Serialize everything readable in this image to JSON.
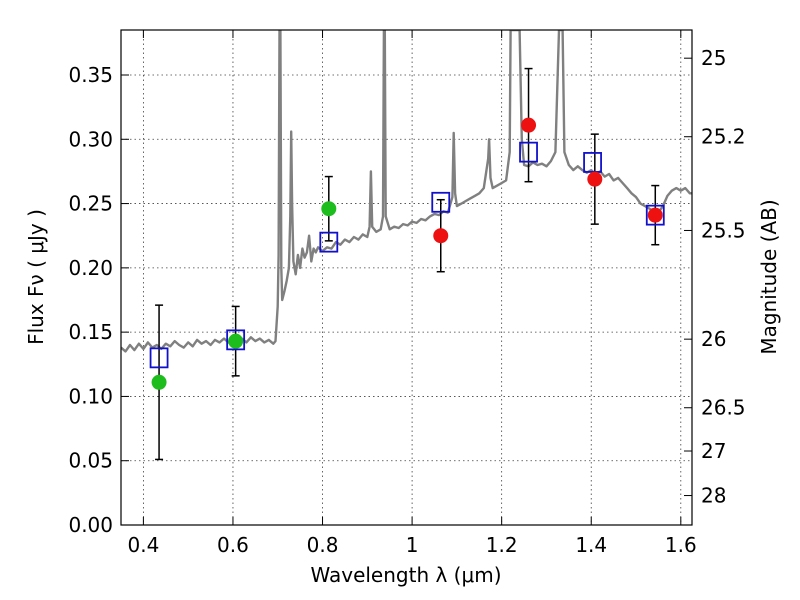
{
  "chart_data": {
    "type": "scatter",
    "xlabel": "Wavelength  λ (μm)",
    "ylabel": "Flux  Fν  ( μJy )",
    "y2label": "Magnitude (AB)",
    "xlim": [
      0.35,
      1.625
    ],
    "ylim": [
      0.0,
      0.385
    ],
    "x_ticks": [
      0.4,
      0.6,
      0.8,
      1.0,
      1.2,
      1.4,
      1.6
    ],
    "x_tick_labels": [
      "0.4",
      "0.6",
      "0.8",
      "1",
      "1.2",
      "1.4",
      "1.6"
    ],
    "y_ticks": [
      0.0,
      0.05,
      0.1,
      0.15,
      0.2,
      0.25,
      0.3,
      0.35
    ],
    "y_tick_labels": [
      "0.00",
      "0.05",
      "0.10",
      "0.15",
      "0.20",
      "0.25",
      "0.30",
      "0.35"
    ],
    "y2_ticks": [
      25,
      25.2,
      25.5,
      26,
      26.5,
      27,
      28
    ],
    "y2_tick_labels": [
      "25",
      "25.2",
      "25.5",
      "26",
      "26.5",
      "27",
      "28"
    ],
    "grid": true,
    "colors": {
      "spectrum": "#808080",
      "green_points": "#1ebd1e",
      "red_points": "#ee1111",
      "model_boxes": "#1111cc",
      "error_bars": "#000000"
    },
    "series": [
      {
        "kind": "observed-green",
        "points": [
          {
            "x": 0.435,
            "y": 0.111,
            "err": 0.06
          },
          {
            "x": 0.606,
            "y": 0.143,
            "err": 0.027
          },
          {
            "x": 0.814,
            "y": 0.246,
            "err": 0.025
          }
        ]
      },
      {
        "kind": "observed-red",
        "points": [
          {
            "x": 1.064,
            "y": 0.225,
            "err": 0.028
          },
          {
            "x": 1.26,
            "y": 0.311,
            "err": 0.044
          },
          {
            "x": 1.408,
            "y": 0.269,
            "err": 0.035
          },
          {
            "x": 1.543,
            "y": 0.241,
            "err": 0.023
          }
        ]
      },
      {
        "kind": "model-boxes",
        "points": [
          {
            "x": 0.435,
            "y": 0.13
          },
          {
            "x": 0.606,
            "y": 0.144
          },
          {
            "x": 0.814,
            "y": 0.22
          },
          {
            "x": 1.064,
            "y": 0.251
          },
          {
            "x": 1.26,
            "y": 0.29
          },
          {
            "x": 1.403,
            "y": 0.282
          },
          {
            "x": 1.543,
            "y": 0.241
          }
        ]
      },
      {
        "kind": "spectrum",
        "line": [
          [
            0.35,
            0.138
          ],
          [
            0.36,
            0.135
          ],
          [
            0.37,
            0.14
          ],
          [
            0.38,
            0.136
          ],
          [
            0.39,
            0.141
          ],
          [
            0.4,
            0.137
          ],
          [
            0.41,
            0.142
          ],
          [
            0.42,
            0.138
          ],
          [
            0.43,
            0.14
          ],
          [
            0.44,
            0.137
          ],
          [
            0.45,
            0.141
          ],
          [
            0.46,
            0.139
          ],
          [
            0.47,
            0.143
          ],
          [
            0.48,
            0.14
          ],
          [
            0.49,
            0.138
          ],
          [
            0.5,
            0.142
          ],
          [
            0.51,
            0.139
          ],
          [
            0.52,
            0.144
          ],
          [
            0.53,
            0.141
          ],
          [
            0.54,
            0.143
          ],
          [
            0.55,
            0.14
          ],
          [
            0.56,
            0.144
          ],
          [
            0.57,
            0.142
          ],
          [
            0.58,
            0.145
          ],
          [
            0.59,
            0.142
          ],
          [
            0.6,
            0.146
          ],
          [
            0.61,
            0.143
          ],
          [
            0.62,
            0.145
          ],
          [
            0.63,
            0.142
          ],
          [
            0.64,
            0.146
          ],
          [
            0.65,
            0.143
          ],
          [
            0.66,
            0.145
          ],
          [
            0.67,
            0.142
          ],
          [
            0.68,
            0.144
          ],
          [
            0.69,
            0.141
          ],
          [
            0.695,
            0.143
          ],
          [
            0.7,
            0.17
          ],
          [
            0.702,
            0.21
          ],
          [
            0.704,
            0.385
          ],
          [
            0.706,
            0.385
          ],
          [
            0.708,
            0.2
          ],
          [
            0.71,
            0.175
          ],
          [
            0.715,
            0.182
          ],
          [
            0.72,
            0.19
          ],
          [
            0.725,
            0.2
          ],
          [
            0.728,
            0.24
          ],
          [
            0.73,
            0.306
          ],
          [
            0.732,
            0.25
          ],
          [
            0.735,
            0.205
          ],
          [
            0.74,
            0.195
          ],
          [
            0.745,
            0.21
          ],
          [
            0.75,
            0.2
          ],
          [
            0.755,
            0.215
          ],
          [
            0.76,
            0.208
          ],
          [
            0.765,
            0.212
          ],
          [
            0.77,
            0.225
          ],
          [
            0.775,
            0.205
          ],
          [
            0.78,
            0.215
          ],
          [
            0.785,
            0.212
          ],
          [
            0.79,
            0.216
          ],
          [
            0.8,
            0.213
          ],
          [
            0.81,
            0.216
          ],
          [
            0.82,
            0.215
          ],
          [
            0.83,
            0.22
          ],
          [
            0.84,
            0.218
          ],
          [
            0.85,
            0.222
          ],
          [
            0.86,
            0.22
          ],
          [
            0.87,
            0.224
          ],
          [
            0.88,
            0.222
          ],
          [
            0.89,
            0.226
          ],
          [
            0.9,
            0.224
          ],
          [
            0.905,
            0.232
          ],
          [
            0.908,
            0.275
          ],
          [
            0.911,
            0.232
          ],
          [
            0.92,
            0.228
          ],
          [
            0.93,
            0.23
          ],
          [
            0.935,
            0.24
          ],
          [
            0.937,
            0.385
          ],
          [
            0.939,
            0.385
          ],
          [
            0.941,
            0.24
          ],
          [
            0.95,
            0.23
          ],
          [
            0.96,
            0.232
          ],
          [
            0.97,
            0.231
          ],
          [
            0.98,
            0.234
          ],
          [
            0.99,
            0.233
          ],
          [
            1.0,
            0.236
          ],
          [
            1.01,
            0.235
          ],
          [
            1.02,
            0.238
          ],
          [
            1.03,
            0.237
          ],
          [
            1.04,
            0.24
          ],
          [
            1.05,
            0.242
          ],
          [
            1.06,
            0.241
          ],
          [
            1.07,
            0.244
          ],
          [
            1.08,
            0.243
          ],
          [
            1.09,
            0.255
          ],
          [
            1.093,
            0.305
          ],
          [
            1.096,
            0.258
          ],
          [
            1.1,
            0.248
          ],
          [
            1.11,
            0.25
          ],
          [
            1.12,
            0.252
          ],
          [
            1.13,
            0.254
          ],
          [
            1.14,
            0.256
          ],
          [
            1.15,
            0.258
          ],
          [
            1.16,
            0.262
          ],
          [
            1.17,
            0.285
          ],
          [
            1.172,
            0.3
          ],
          [
            1.175,
            0.27
          ],
          [
            1.18,
            0.262
          ],
          [
            1.19,
            0.264
          ],
          [
            1.2,
            0.266
          ],
          [
            1.21,
            0.268
          ],
          [
            1.218,
            0.29
          ],
          [
            1.22,
            0.385
          ],
          [
            1.24,
            0.385
          ],
          [
            1.245,
            0.3
          ],
          [
            1.25,
            0.28
          ],
          [
            1.26,
            0.279
          ],
          [
            1.27,
            0.282
          ],
          [
            1.28,
            0.28
          ],
          [
            1.29,
            0.281
          ],
          [
            1.3,
            0.279
          ],
          [
            1.31,
            0.283
          ],
          [
            1.32,
            0.29
          ],
          [
            1.328,
            0.385
          ],
          [
            1.336,
            0.385
          ],
          [
            1.34,
            0.29
          ],
          [
            1.35,
            0.28
          ],
          [
            1.36,
            0.276
          ],
          [
            1.37,
            0.279
          ],
          [
            1.38,
            0.276
          ],
          [
            1.39,
            0.274
          ],
          [
            1.4,
            0.276
          ],
          [
            1.41,
            0.273
          ],
          [
            1.42,
            0.275
          ],
          [
            1.43,
            0.271
          ],
          [
            1.44,
            0.273
          ],
          [
            1.45,
            0.268
          ],
          [
            1.46,
            0.27
          ],
          [
            1.47,
            0.266
          ],
          [
            1.48,
            0.262
          ],
          [
            1.49,
            0.258
          ],
          [
            1.5,
            0.255
          ],
          [
            1.51,
            0.25
          ],
          [
            1.52,
            0.248
          ],
          [
            1.53,
            0.246
          ],
          [
            1.54,
            0.244
          ],
          [
            1.55,
            0.243
          ],
          [
            1.56,
            0.248
          ],
          [
            1.57,
            0.256
          ],
          [
            1.58,
            0.26
          ],
          [
            1.59,
            0.262
          ],
          [
            1.6,
            0.26
          ],
          [
            1.61,
            0.262
          ],
          [
            1.62,
            0.258
          ],
          [
            1.625,
            0.258
          ]
        ]
      }
    ]
  }
}
